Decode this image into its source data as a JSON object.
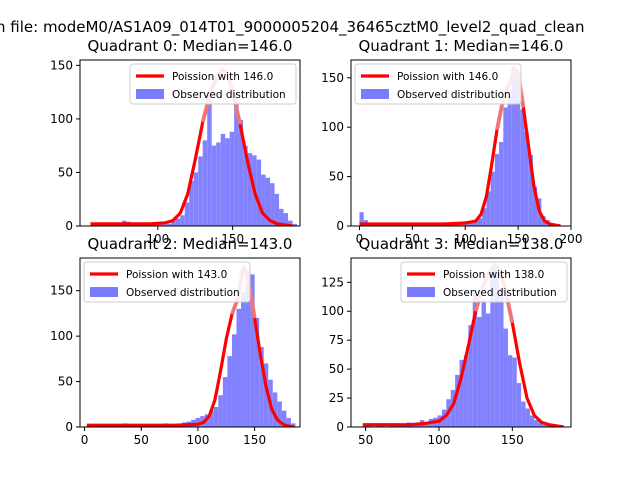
{
  "figure": {
    "suptitle": "n file: modeM0/AS1A09_014T01_9000005204_36465cztM0_level2_quad_clean"
  },
  "colors": {
    "hist": "#7b7bff",
    "poisson_line": "#ff0000",
    "poisson_peak": "#f08080",
    "axes": "#000000"
  },
  "chart_data": [
    {
      "type": "bar",
      "title": "Quadrant 0: Median=146.0",
      "xlim": [
        48,
        195
      ],
      "ylim": [
        0,
        155
      ],
      "xticks": [
        100,
        150
      ],
      "yticks": [
        0,
        50,
        100,
        150
      ],
      "legend": {
        "position": "top-right",
        "poisson_label": "Poission with 146.0",
        "hist_label": "Observed distribution"
      },
      "histogram": {
        "bin_starts": [
          55,
          58,
          61,
          64,
          67,
          70,
          73,
          76,
          79,
          82,
          85,
          88,
          91,
          94,
          97,
          100,
          103,
          106,
          109,
          112,
          115,
          118,
          121,
          124,
          127,
          130,
          133,
          136,
          139,
          142,
          145,
          148,
          151,
          154,
          157,
          160,
          163,
          166,
          169,
          172,
          175,
          178,
          181,
          184,
          187,
          190
        ],
        "counts": [
          0,
          0,
          0,
          0,
          0,
          0,
          0,
          5,
          4,
          3,
          2,
          2,
          1,
          2,
          2,
          2,
          3,
          2,
          5,
          7,
          10,
          22,
          42,
          50,
          65,
          80,
          118,
          75,
          78,
          86,
          82,
          88,
          115,
          99,
          75,
          68,
          66,
          62,
          48,
          45,
          40,
          30,
          16,
          12,
          5,
          2
        ]
      },
      "poisson": {
        "x": [
          55,
          65,
          75,
          85,
          95,
          105,
          110,
          115,
          120,
          125,
          130,
          135,
          140,
          143,
          146,
          150,
          155,
          160,
          165,
          170,
          175,
          180,
          185,
          190
        ],
        "y": [
          2,
          2,
          2,
          2,
          2,
          3,
          5,
          12,
          30,
          62,
          97,
          124,
          141,
          146,
          143,
          126,
          95,
          60,
          30,
          12,
          5,
          2,
          1,
          0
        ]
      }
    },
    {
      "type": "bar",
      "title": "Quadrant 1: Median=146.0",
      "xlim": [
        -8,
        200
      ],
      "ylim": [
        0,
        168
      ],
      "xticks": [
        0,
        50,
        100,
        150,
        200
      ],
      "yticks": [
        0,
        50,
        100,
        150
      ],
      "legend": {
        "position": "top-left",
        "poisson_label": "Poission with 146.0",
        "hist_label": "Observed distribution"
      },
      "histogram": {
        "bin_starts": [
          0,
          4,
          8,
          12,
          16,
          20,
          24,
          28,
          32,
          36,
          40,
          44,
          48,
          52,
          56,
          60,
          64,
          68,
          72,
          76,
          80,
          84,
          88,
          92,
          96,
          100,
          104,
          108,
          112,
          116,
          120,
          124,
          128,
          132,
          136,
          140,
          144,
          148,
          152,
          156,
          160,
          164,
          168,
          172,
          176,
          180
        ],
        "counts": [
          14,
          6,
          3,
          2,
          2,
          1,
          1,
          1,
          0,
          1,
          0,
          1,
          1,
          0,
          0,
          2,
          1,
          0,
          1,
          0,
          1,
          1,
          2,
          3,
          4,
          5,
          4,
          5,
          8,
          18,
          35,
          55,
          73,
          85,
          120,
          132,
          160,
          150,
          118,
          95,
          72,
          40,
          28,
          10,
          6,
          2
        ]
      },
      "poisson": {
        "x": [
          0,
          20,
          40,
          60,
          80,
          100,
          110,
          115,
          120,
          125,
          130,
          135,
          140,
          143,
          146,
          150,
          155,
          160,
          165,
          170,
          175,
          180,
          185,
          190
        ],
        "y": [
          2,
          2,
          2,
          2,
          2,
          3,
          5,
          12,
          30,
          62,
          97,
          124,
          141,
          146,
          160,
          155,
          120,
          80,
          40,
          15,
          5,
          2,
          1,
          0
        ]
      }
    },
    {
      "type": "bar",
      "title": "Quadrant 2: Median=143.0",
      "xlim": [
        -4,
        190
      ],
      "ylim": [
        0,
        186
      ],
      "xticks": [
        0,
        50,
        100,
        150
      ],
      "yticks": [
        0,
        50,
        100,
        150
      ],
      "legend": {
        "position": "top-left",
        "poisson_label": "Poission with 143.0",
        "hist_label": "Observed distribution"
      },
      "histogram": {
        "bin_starts": [
          2,
          6,
          10,
          14,
          18,
          22,
          26,
          30,
          34,
          38,
          42,
          46,
          50,
          54,
          58,
          62,
          66,
          70,
          74,
          78,
          82,
          86,
          90,
          94,
          98,
          102,
          106,
          110,
          114,
          118,
          122,
          126,
          130,
          134,
          138,
          142,
          146,
          150,
          154,
          158,
          162,
          166,
          170,
          174,
          178,
          182
        ],
        "counts": [
          1,
          0,
          1,
          0,
          1,
          0,
          2,
          3,
          4,
          2,
          3,
          2,
          1,
          3,
          2,
          1,
          2,
          4,
          3,
          2,
          3,
          5,
          6,
          8,
          10,
          12,
          14,
          18,
          22,
          35,
          55,
          78,
          102,
          130,
          148,
          172,
          168,
          120,
          88,
          70,
          52,
          38,
          28,
          18,
          10,
          4
        ]
      },
      "poisson": {
        "x": [
          2,
          20,
          40,
          60,
          80,
          100,
          105,
          110,
          115,
          120,
          125,
          130,
          135,
          140,
          143,
          146,
          150,
          155,
          160,
          165,
          170,
          175,
          180,
          185
        ],
        "y": [
          2,
          2,
          2,
          2,
          2,
          3,
          5,
          12,
          30,
          62,
          97,
          124,
          141,
          176,
          170,
          150,
          120,
          80,
          45,
          20,
          8,
          3,
          1,
          0
        ]
      }
    },
    {
      "type": "bar",
      "title": "Quadrant 3: Median=138.0",
      "xlim": [
        40,
        190
      ],
      "ylim": [
        0,
        146
      ],
      "xticks": [
        50,
        100,
        150
      ],
      "yticks": [
        0,
        25,
        50,
        75,
        100,
        125
      ],
      "legend": {
        "position": "top-right",
        "poisson_label": "Poission with 138.0",
        "hist_label": "Observed distribution"
      },
      "histogram": {
        "bin_starts": [
          48,
          51,
          54,
          57,
          60,
          63,
          66,
          69,
          72,
          75,
          78,
          81,
          84,
          87,
          90,
          93,
          96,
          99,
          102,
          105,
          108,
          111,
          114,
          117,
          120,
          123,
          126,
          129,
          132,
          135,
          138,
          141,
          144,
          147,
          150,
          153,
          156,
          159,
          162,
          165,
          168,
          171,
          174,
          177,
          180,
          183
        ],
        "counts": [
          1,
          1,
          0,
          1,
          1,
          0,
          1,
          1,
          2,
          3,
          4,
          2,
          3,
          6,
          3,
          7,
          8,
          10,
          15,
          24,
          32,
          45,
          58,
          62,
          88,
          118,
          95,
          110,
          98,
          138,
          140,
          120,
          85,
          62,
          60,
          38,
          22,
          16,
          10,
          6,
          4,
          2,
          1,
          1,
          0,
          0
        ]
      },
      "poisson": {
        "x": [
          48,
          60,
          70,
          80,
          90,
          100,
          105,
          110,
          115,
          120,
          125,
          130,
          135,
          138,
          141,
          145,
          150,
          155,
          160,
          165,
          170,
          175,
          180,
          185
        ],
        "y": [
          2,
          2,
          2,
          2,
          3,
          5,
          10,
          20,
          42,
          70,
          100,
          122,
          135,
          140,
          136,
          120,
          90,
          55,
          25,
          10,
          4,
          2,
          1,
          0
        ]
      }
    }
  ]
}
